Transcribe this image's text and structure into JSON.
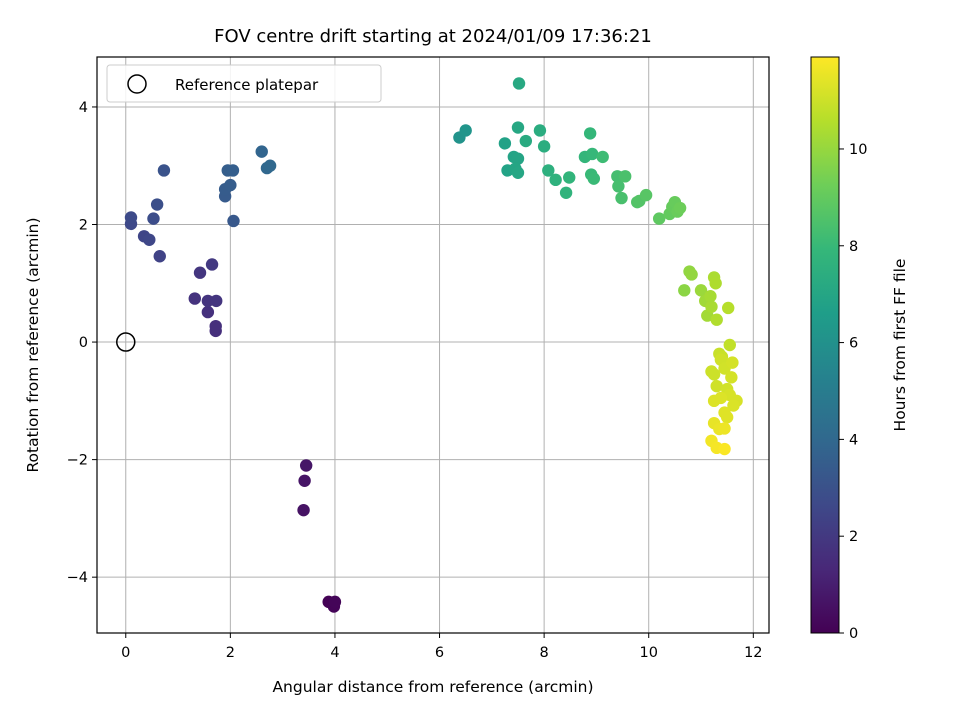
{
  "chart_data": {
    "type": "scatter",
    "title": "FOV centre drift starting at 2024/01/09 17:36:21",
    "xlabel": "Angular distance from reference (arcmin)",
    "ylabel": "Rotation from reference (arcmin)",
    "xlim": [
      -0.55,
      12.3
    ],
    "ylim": [
      -4.95,
      4.85
    ],
    "xticks": [
      0,
      2,
      4,
      6,
      8,
      10,
      12
    ],
    "yticks": [
      -4,
      -2,
      0,
      2,
      4
    ],
    "grid": true,
    "legend": {
      "position": "top-left",
      "entries": [
        "Reference platepar"
      ]
    },
    "reference_point": {
      "x": 0,
      "y": 0,
      "marker": "open-circle"
    },
    "colorbar": {
      "label": "Hours from first FF file",
      "colormap": "viridis",
      "range": [
        0,
        11.9
      ],
      "ticks": [
        0,
        2,
        4,
        6,
        8,
        10
      ],
      "stops": [
        "#440154",
        "#482878",
        "#3e4989",
        "#31688e",
        "#26828e",
        "#1f9e89",
        "#35b779",
        "#6ece58",
        "#b5de2b",
        "#fde725"
      ]
    },
    "series": [
      {
        "points": [
          {
            "x": 3.88,
            "y": -4.42,
            "c": 0.05
          },
          {
            "x": 3.98,
            "y": -4.5,
            "c": 0.1
          },
          {
            "x": 4.0,
            "y": -4.42,
            "c": 0.15
          },
          {
            "x": 3.4,
            "y": -2.86,
            "c": 0.6
          },
          {
            "x": 3.42,
            "y": -2.36,
            "c": 0.65
          },
          {
            "x": 3.45,
            "y": -2.1,
            "c": 0.7
          },
          {
            "x": 1.72,
            "y": 0.19,
            "c": 1.6
          },
          {
            "x": 1.72,
            "y": 0.27,
            "c": 1.65
          },
          {
            "x": 1.57,
            "y": 0.51,
            "c": 1.7
          },
          {
            "x": 1.32,
            "y": 0.74,
            "c": 1.75
          },
          {
            "x": 1.57,
            "y": 0.7,
            "c": 1.8
          },
          {
            "x": 1.73,
            "y": 0.7,
            "c": 1.85
          },
          {
            "x": 1.42,
            "y": 1.18,
            "c": 1.9
          },
          {
            "x": 1.65,
            "y": 1.32,
            "c": 2.0
          },
          {
            "x": 0.65,
            "y": 1.46,
            "c": 2.4
          },
          {
            "x": 0.35,
            "y": 1.8,
            "c": 2.5
          },
          {
            "x": 0.45,
            "y": 1.74,
            "c": 2.55
          },
          {
            "x": 0.1,
            "y": 2.01,
            "c": 2.65
          },
          {
            "x": 0.1,
            "y": 2.12,
            "c": 2.7
          },
          {
            "x": 0.53,
            "y": 2.1,
            "c": 2.8
          },
          {
            "x": 0.6,
            "y": 2.34,
            "c": 2.9
          },
          {
            "x": 0.73,
            "y": 2.92,
            "c": 3.05
          },
          {
            "x": 2.06,
            "y": 2.06,
            "c": 3.3
          },
          {
            "x": 1.9,
            "y": 2.48,
            "c": 3.4
          },
          {
            "x": 1.9,
            "y": 2.6,
            "c": 3.45
          },
          {
            "x": 2.0,
            "y": 2.67,
            "c": 3.5
          },
          {
            "x": 1.95,
            "y": 2.92,
            "c": 3.55
          },
          {
            "x": 2.05,
            "y": 2.92,
            "c": 3.6
          },
          {
            "x": 2.6,
            "y": 3.24,
            "c": 3.85
          },
          {
            "x": 2.7,
            "y": 2.96,
            "c": 3.95
          },
          {
            "x": 2.76,
            "y": 3.0,
            "c": 4.0
          },
          {
            "x": 6.38,
            "y": 3.48,
            "c": 6.1
          },
          {
            "x": 6.5,
            "y": 3.6,
            "c": 6.2
          },
          {
            "x": 7.25,
            "y": 3.38,
            "c": 6.8
          },
          {
            "x": 7.3,
            "y": 2.92,
            "c": 6.85
          },
          {
            "x": 7.42,
            "y": 3.15,
            "c": 6.9
          },
          {
            "x": 7.5,
            "y": 3.12,
            "c": 6.95
          },
          {
            "x": 7.45,
            "y": 2.95,
            "c": 7.0
          },
          {
            "x": 7.5,
            "y": 2.88,
            "c": 7.05
          },
          {
            "x": 7.5,
            "y": 3.65,
            "c": 7.1
          },
          {
            "x": 7.52,
            "y": 4.4,
            "c": 7.15
          },
          {
            "x": 7.65,
            "y": 3.42,
            "c": 7.25
          },
          {
            "x": 7.92,
            "y": 3.6,
            "c": 7.35
          },
          {
            "x": 8.0,
            "y": 3.33,
            "c": 7.4
          },
          {
            "x": 8.08,
            "y": 2.92,
            "c": 7.5
          },
          {
            "x": 8.22,
            "y": 2.76,
            "c": 7.6
          },
          {
            "x": 8.42,
            "y": 2.54,
            "c": 7.7
          },
          {
            "x": 8.48,
            "y": 2.8,
            "c": 7.75
          },
          {
            "x": 8.78,
            "y": 3.15,
            "c": 7.85
          },
          {
            "x": 8.88,
            "y": 3.55,
            "c": 7.9
          },
          {
            "x": 8.92,
            "y": 3.2,
            "c": 7.95
          },
          {
            "x": 8.9,
            "y": 2.85,
            "c": 8.0
          },
          {
            "x": 8.95,
            "y": 2.78,
            "c": 8.05
          },
          {
            "x": 9.12,
            "y": 3.15,
            "c": 8.15
          },
          {
            "x": 9.4,
            "y": 2.82,
            "c": 8.3
          },
          {
            "x": 9.42,
            "y": 2.65,
            "c": 8.35
          },
          {
            "x": 9.48,
            "y": 2.45,
            "c": 8.4
          },
          {
            "x": 9.55,
            "y": 2.82,
            "c": 8.45
          },
          {
            "x": 9.78,
            "y": 2.38,
            "c": 8.6
          },
          {
            "x": 9.82,
            "y": 2.4,
            "c": 8.65
          },
          {
            "x": 9.95,
            "y": 2.5,
            "c": 8.75
          },
          {
            "x": 10.2,
            "y": 2.1,
            "c": 8.9
          },
          {
            "x": 10.4,
            "y": 2.18,
            "c": 9.0
          },
          {
            "x": 10.45,
            "y": 2.3,
            "c": 9.05
          },
          {
            "x": 10.5,
            "y": 2.38,
            "c": 9.1
          },
          {
            "x": 10.55,
            "y": 2.22,
            "c": 9.15
          },
          {
            "x": 10.6,
            "y": 2.28,
            "c": 9.2
          },
          {
            "x": 10.68,
            "y": 0.88,
            "c": 9.8
          },
          {
            "x": 10.78,
            "y": 1.2,
            "c": 9.9
          },
          {
            "x": 10.82,
            "y": 1.15,
            "c": 9.95
          },
          {
            "x": 11.0,
            "y": 0.88,
            "c": 10.1
          },
          {
            "x": 11.08,
            "y": 0.7,
            "c": 10.2
          },
          {
            "x": 11.12,
            "y": 0.45,
            "c": 10.25
          },
          {
            "x": 11.2,
            "y": 0.6,
            "c": 10.35
          },
          {
            "x": 11.18,
            "y": 0.78,
            "c": 10.3
          },
          {
            "x": 11.25,
            "y": 1.1,
            "c": 10.4
          },
          {
            "x": 11.28,
            "y": 1.0,
            "c": 10.45
          },
          {
            "x": 11.3,
            "y": 0.38,
            "c": 10.5
          },
          {
            "x": 11.52,
            "y": 0.58,
            "c": 10.6
          },
          {
            "x": 11.55,
            "y": -0.05,
            "c": 10.8
          },
          {
            "x": 11.35,
            "y": -0.2,
            "c": 10.9
          },
          {
            "x": 11.4,
            "y": -0.25,
            "c": 10.95
          },
          {
            "x": 11.2,
            "y": -0.5,
            "c": 11.0
          },
          {
            "x": 11.25,
            "y": -0.55,
            "c": 11.0
          },
          {
            "x": 11.3,
            "y": -0.75,
            "c": 11.05
          },
          {
            "x": 11.38,
            "y": -0.3,
            "c": 11.05
          },
          {
            "x": 11.45,
            "y": -0.45,
            "c": 11.1
          },
          {
            "x": 11.5,
            "y": -0.8,
            "c": 11.1
          },
          {
            "x": 11.58,
            "y": -0.6,
            "c": 11.15
          },
          {
            "x": 11.6,
            "y": -0.35,
            "c": 11.15
          },
          {
            "x": 11.55,
            "y": -0.9,
            "c": 11.2
          },
          {
            "x": 11.68,
            "y": -1.0,
            "c": 11.2
          },
          {
            "x": 11.62,
            "y": -1.08,
            "c": 11.25
          },
          {
            "x": 11.25,
            "y": -1.0,
            "c": 11.3
          },
          {
            "x": 11.38,
            "y": -0.95,
            "c": 11.3
          },
          {
            "x": 11.45,
            "y": -1.2,
            "c": 11.35
          },
          {
            "x": 11.5,
            "y": -1.28,
            "c": 11.35
          },
          {
            "x": 11.25,
            "y": -1.38,
            "c": 11.5
          },
          {
            "x": 11.35,
            "y": -1.48,
            "c": 11.55
          },
          {
            "x": 11.45,
            "y": -1.47,
            "c": 11.6
          },
          {
            "x": 11.2,
            "y": -1.68,
            "c": 11.7
          },
          {
            "x": 11.3,
            "y": -1.8,
            "c": 11.75
          },
          {
            "x": 11.45,
            "y": -1.82,
            "c": 11.85
          }
        ]
      }
    ]
  }
}
